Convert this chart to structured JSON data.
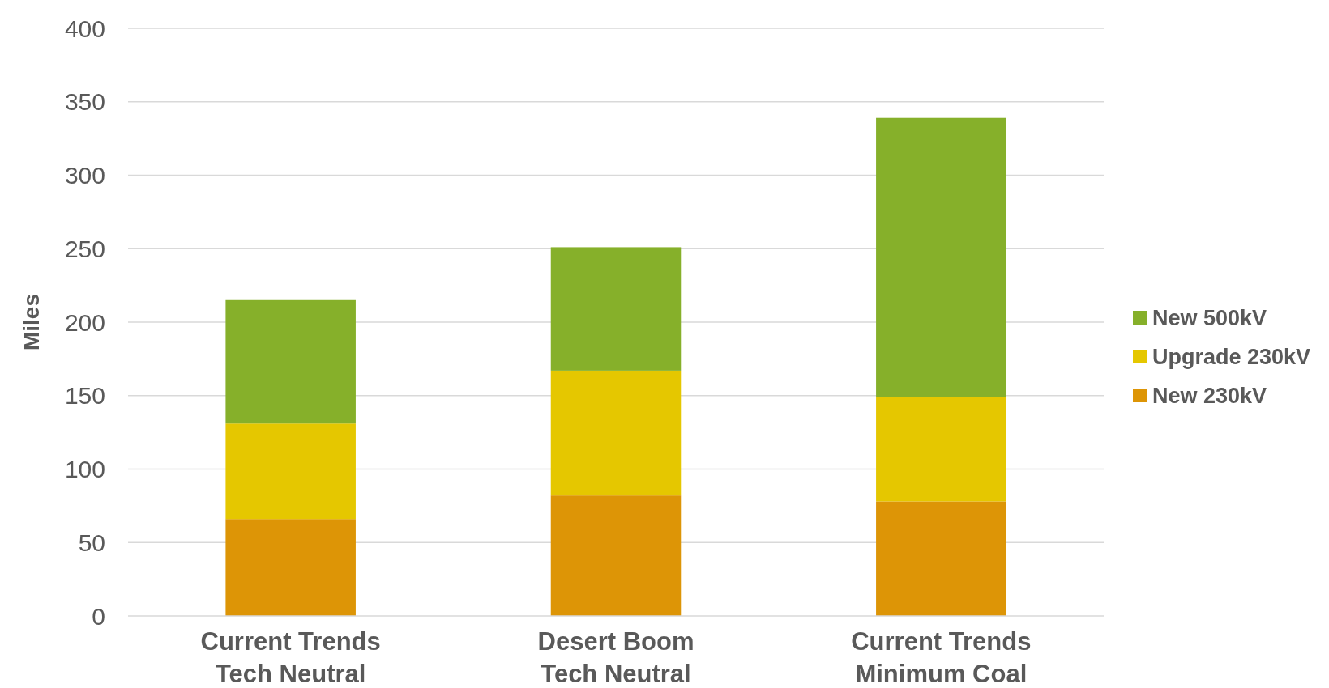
{
  "chart_data": {
    "type": "bar",
    "stacked": true,
    "ylabel": "Miles",
    "categories": [
      "Current Trends\nTech Neutral",
      "Desert Boom\nTech Neutral",
      "Current Trends\nMinimum Coal"
    ],
    "series": [
      {
        "name": "New 230kV",
        "color": "#dd9506",
        "values": [
          66,
          82,
          78
        ]
      },
      {
        "name": "Upgrade 230kV",
        "color": "#e5c700",
        "values": [
          65,
          85,
          71
        ]
      },
      {
        "name": "New 500kV",
        "color": "#86b02a",
        "values": [
          84,
          84,
          190
        ]
      }
    ],
    "ylim": [
      0,
      400
    ],
    "yticks": [
      0,
      50,
      100,
      150,
      200,
      250,
      300,
      350,
      400
    ],
    "grid": "y",
    "legend": "right"
  }
}
